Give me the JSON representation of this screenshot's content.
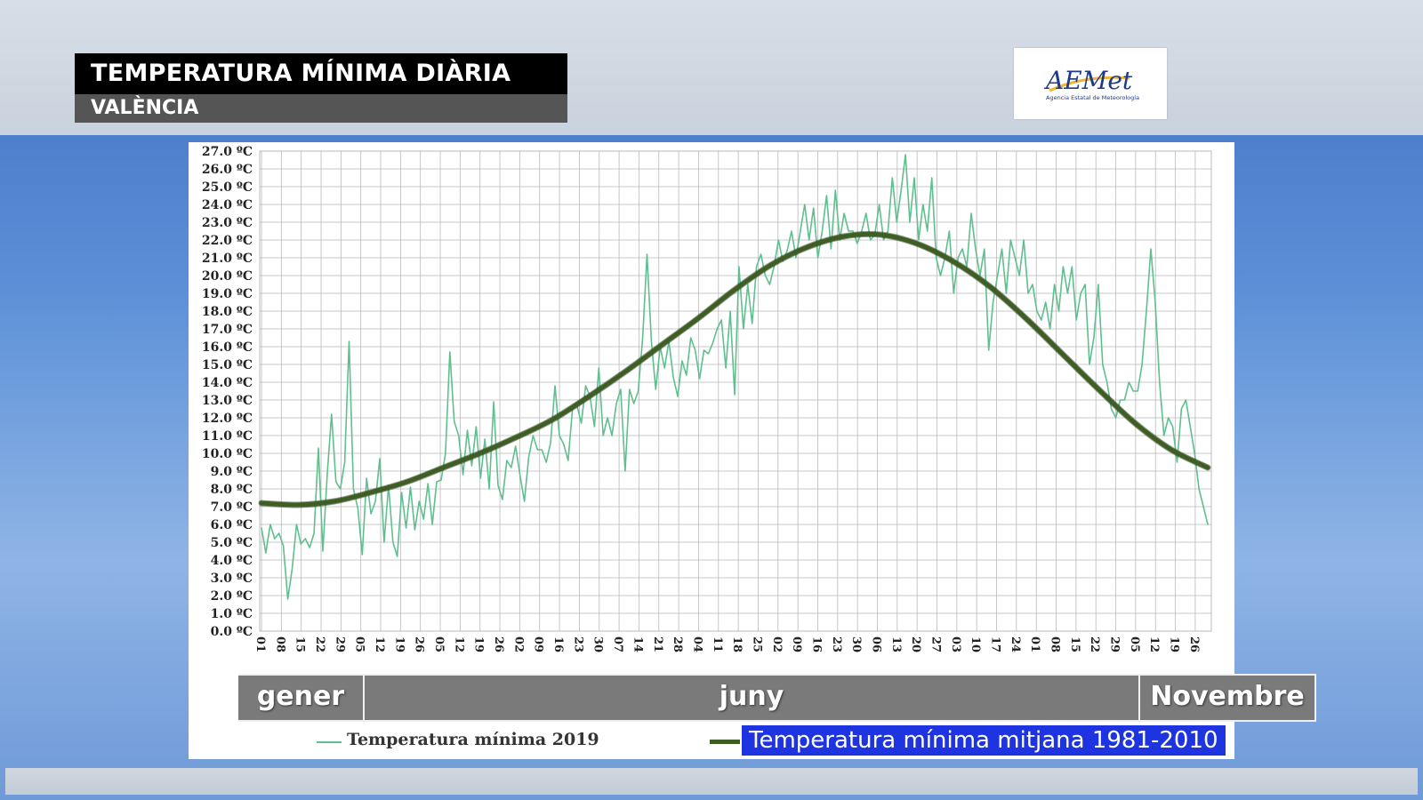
{
  "header": {
    "title": "TEMPERATURA MÍNIMA DIÀRIA",
    "subtitle": "VALÈNCIA",
    "logo_text": "AEMet",
    "logo_subtext": "Agencia Estatal de Meteorología"
  },
  "months": [
    {
      "label": "gener"
    },
    {
      "label": "juny"
    },
    {
      "label": "Novembre"
    }
  ],
  "colors": {
    "series_2019": "#5fbf8f",
    "series_avg": "#3f5e24",
    "legend_highlight": "#1d34e0"
  },
  "chart_data": {
    "type": "line",
    "xlabel": "",
    "ylabel": "",
    "ylim": [
      0,
      27
    ],
    "grid": true,
    "x_tick_labels": [
      "01",
      "08",
      "15",
      "22",
      "29",
      "05",
      "12",
      "19",
      "26",
      "05",
      "12",
      "19",
      "26",
      "02",
      "09",
      "16",
      "23",
      "30",
      "07",
      "14",
      "21",
      "28",
      "04",
      "11",
      "18",
      "25",
      "02",
      "09",
      "16",
      "23",
      "30",
      "06",
      "13",
      "20",
      "27",
      "03",
      "10",
      "17",
      "24",
      "01",
      "08",
      "15",
      "22",
      "29",
      "05",
      "12",
      "19",
      "26"
    ],
    "y_tick_labels": [
      "0.0 ºC",
      "1.0 ºC",
      "2.0 ºC",
      "3.0 ºC",
      "4.0 ºC",
      "5.0 ºC",
      "6.0 ºC",
      "7.0 ºC",
      "8.0 ºC",
      "9.0 ºC",
      "10.0 ºC",
      "11.0 ºC",
      "12.0 ºC",
      "13.0 ºC",
      "14.0 ºC",
      "15.0 ºC",
      "16.0 ºC",
      "17.0 ºC",
      "18.0 ºC",
      "19.0 ºC",
      "20.0 ºC",
      "21.0 ºC",
      "22.0 ºC",
      "23.0 ºC",
      "24.0 ºC",
      "25.0 ºC",
      "26.0 ºC",
      "27.0 ºC"
    ],
    "series": [
      {
        "name": "Temperatura mínima 2019",
        "values": [
          5.8,
          4.4,
          6.0,
          5.2,
          5.5,
          4.8,
          1.8,
          3.5,
          6.0,
          4.9,
          5.2,
          4.7,
          5.5,
          10.3,
          4.5,
          8.8,
          12.2,
          8.4,
          8.0,
          9.5,
          16.3,
          8.0,
          6.9,
          4.3,
          8.6,
          6.6,
          7.3,
          9.7,
          5.0,
          8.2,
          5.0,
          4.2,
          7.8,
          5.8,
          8.1,
          5.7,
          7.3,
          6.3,
          8.3,
          6.0,
          8.4,
          8.5,
          10.0,
          15.7,
          11.8,
          11.0,
          8.8,
          11.3,
          9.3,
          11.5,
          8.6,
          10.8,
          8.0,
          12.9,
          8.2,
          7.4,
          9.6,
          9.2,
          10.4,
          8.8,
          7.3,
          9.8,
          11.0,
          10.2,
          10.2,
          9.5,
          10.6,
          13.8,
          11.0,
          10.5,
          9.6,
          12.5,
          12.7,
          11.7,
          13.8,
          13.2,
          11.5,
          14.8,
          11.0,
          12.0,
          11.0,
          12.8,
          13.6,
          9.0,
          13.6,
          12.8,
          13.5,
          16.5,
          21.2,
          16.3,
          13.6,
          16.0,
          14.8,
          16.3,
          14.3,
          13.2,
          15.2,
          14.4,
          16.5,
          15.8,
          14.2,
          15.8,
          15.6,
          16.2,
          17.0,
          17.5,
          14.8,
          18.0,
          13.3,
          20.5,
          17.0,
          19.5,
          17.3,
          20.5,
          21.2,
          20.0,
          19.5,
          20.5,
          22.0,
          20.8,
          21.4,
          22.5,
          21.0,
          22.5,
          24.0,
          22.0,
          23.8,
          21.0,
          22.5,
          24.5,
          21.5,
          24.8,
          22.0,
          23.5,
          22.5,
          22.5,
          21.8,
          22.5,
          23.5,
          22.0,
          22.3,
          24.0,
          22.0,
          22.5,
          25.5,
          23.0,
          24.8,
          26.8,
          23.0,
          25.5,
          22.0,
          24.0,
          22.5,
          25.5,
          21.0,
          20.0,
          21.0,
          22.5,
          19.0,
          21.0,
          21.5,
          20.5,
          23.5,
          21.5,
          20.0,
          21.5,
          15.8,
          18.5,
          20.0,
          21.5,
          19.0,
          22.0,
          21.0,
          20.0,
          22.0,
          19.0,
          19.5,
          18.0,
          17.5,
          18.5,
          17.0,
          19.5,
          18.0,
          20.5,
          19.0,
          20.5,
          17.5,
          19.0,
          19.5,
          15.0,
          16.5,
          19.5,
          15.0,
          14.0,
          12.5,
          12.0,
          13.0,
          13.0,
          14.0,
          13.5,
          13.5,
          15.0,
          18.0,
          21.5,
          18.5,
          14.0,
          11.0,
          12.0,
          11.5,
          9.5,
          12.5,
          13.0,
          11.5,
          10.0,
          8.0,
          7.0,
          6.0
        ]
      },
      {
        "name": "Temperatura mínima mitjana 1981-2010",
        "values": [
          7.2,
          7.1,
          7.3,
          7.8,
          8.4,
          9.2,
          10.0,
          10.9,
          11.9,
          13.2,
          14.6,
          16.1,
          17.6,
          19.2,
          20.6,
          21.6,
          22.2,
          22.3,
          21.8,
          20.8,
          19.4,
          17.6,
          15.6,
          13.6,
          11.7,
          10.2,
          9.2
        ]
      }
    ],
    "legend": "bottom"
  }
}
